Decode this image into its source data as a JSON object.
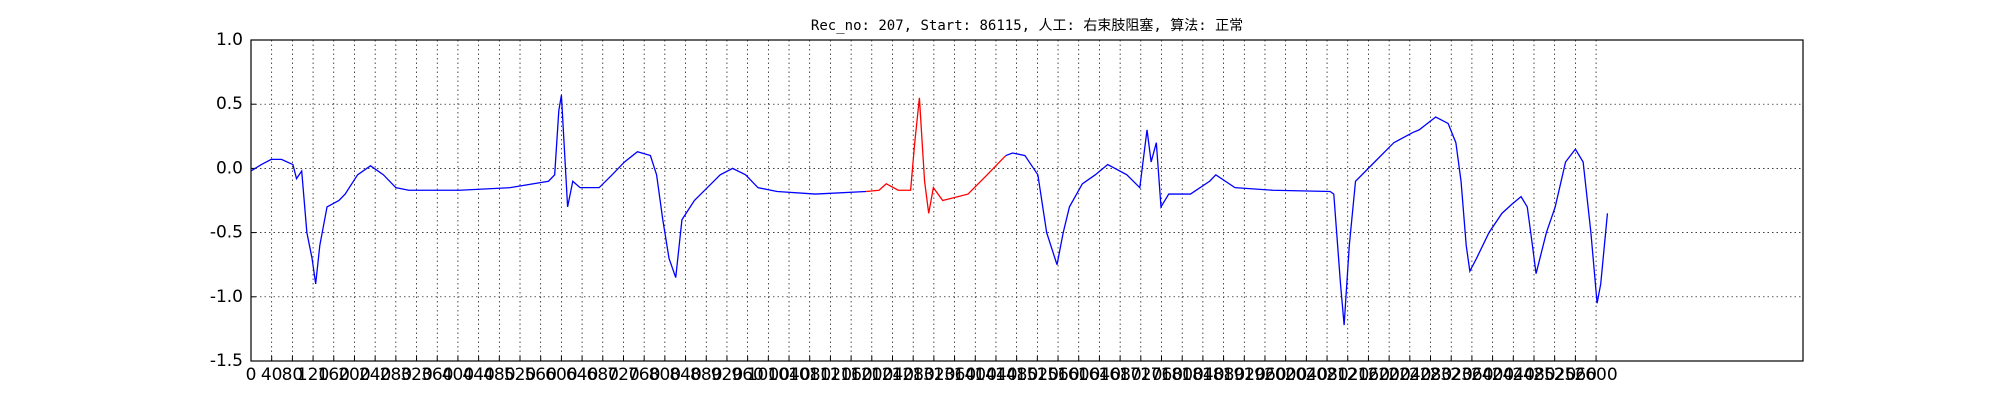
{
  "chart_data": {
    "type": "line",
    "title": "Rec_no: 207, Start: 86115, 人工: 右束肢阻塞, 算法: 正常",
    "xlim": [
      0,
      3000
    ],
    "xticks": [
      0,
      40,
      80,
      120,
      160,
      200,
      240,
      280,
      320,
      360,
      400,
      440,
      480,
      520,
      560,
      600,
      640,
      680,
      720,
      760,
      800,
      840,
      880,
      920,
      960,
      1000,
      1040,
      1080,
      1120,
      1160,
      1200,
      1240,
      1280,
      1320,
      1360,
      1400,
      1440,
      1480,
      1520,
      1560,
      1600,
      1640,
      1680,
      1720,
      1760,
      1800,
      1840,
      1880,
      1920,
      1960,
      2000,
      2040,
      2080,
      2120,
      2160,
      2200,
      2240,
      2280,
      2320,
      2360,
      2400,
      2440,
      2480,
      2520,
      2560,
      2600
    ],
    "ylim": [
      -1.5,
      1.0
    ],
    "yticks": [
      -1.5,
      {
        "value": -1,
        "label": "-1.0"
      },
      -0.5,
      {
        "value": 0,
        "label": "0.0"
      },
      0.5,
      {
        "value": 1,
        "label": "1.0"
      }
    ],
    "grid": true,
    "series": [
      {
        "color": "#0000ff",
        "x": [
          0,
          20,
          39,
          59,
          81,
          88,
          98,
          108,
          118,
          125,
          133,
          147,
          170,
          182,
          206,
          231,
          256,
          280,
          305,
          403,
          501,
          575,
          587,
          595,
          600,
          612,
          622,
          636,
          673,
          698,
          722,
          747,
          772,
          784,
          796,
          808,
          821,
          833,
          857,
          882,
          907,
          931,
          956,
          980,
          1017,
          1091,
          1189,
          1300,
          1459,
          1472,
          1496,
          1521,
          1538,
          1558,
          1570,
          1582,
          1607,
          1632,
          1656,
          1693,
          1718,
          1732,
          1740,
          1750,
          1759,
          1774,
          1816,
          1853,
          1865,
          1902,
          1975,
          2086,
          2093,
          2106,
          2113,
          2123,
          2135,
          2172,
          2209,
          2246,
          2258,
          2290,
          2314,
          2329,
          2339,
          2349,
          2356,
          2369,
          2393,
          2418,
          2437,
          2455,
          2467,
          2477,
          2484,
          2504,
          2521,
          2541,
          2560,
          2575,
          2590,
          2602,
          2609,
          2622
        ],
        "values": [
          -0.02,
          0.03,
          0.07,
          0.07,
          0.03,
          -0.08,
          -0.02,
          -0.5,
          -0.7,
          -0.9,
          -0.6,
          -0.3,
          -0.25,
          -0.2,
          -0.05,
          0.02,
          -0.05,
          -0.15,
          -0.17,
          -0.17,
          -0.15,
          -0.1,
          -0.05,
          0.45,
          0.57,
          -0.3,
          -0.1,
          -0.15,
          -0.15,
          -0.05,
          0.05,
          0.13,
          0.1,
          -0.05,
          -0.4,
          -0.7,
          -0.85,
          -0.4,
          -0.25,
          -0.15,
          -0.05,
          0.0,
          -0.05,
          -0.15,
          -0.18,
          -0.2,
          -0.18,
          null,
          0.1,
          0.12,
          0.1,
          -0.05,
          -0.5,
          -0.75,
          -0.5,
          -0.3,
          -0.12,
          -0.05,
          0.03,
          -0.05,
          -0.15,
          0.3,
          0.05,
          0.2,
          -0.3,
          -0.2,
          -0.2,
          -0.1,
          -0.05,
          -0.15,
          -0.17,
          -0.18,
          -0.2,
          -0.9,
          -1.22,
          -0.6,
          -0.1,
          0.05,
          0.2,
          0.28,
          0.3,
          0.4,
          0.35,
          0.2,
          -0.1,
          -0.6,
          -0.8,
          -0.7,
          -0.5,
          -0.35,
          -0.28,
          -0.22,
          -0.3,
          -0.6,
          -0.82,
          -0.5,
          -0.3,
          0.05,
          0.15,
          0.05,
          -0.5,
          -1.05,
          -0.9,
          -0.35
        ]
      },
      {
        "color": "#ff0000",
        "x": [
          1189,
          1214,
          1228,
          1251,
          1275,
          1283,
          1292,
          1302,
          1310,
          1319,
          1337,
          1386,
          1423,
          1447,
          1459
        ],
        "values": [
          -0.18,
          -0.17,
          -0.12,
          -0.17,
          -0.17,
          0.2,
          0.55,
          -0.1,
          -0.35,
          -0.15,
          -0.25,
          -0.2,
          -0.05,
          0.05,
          0.1
        ]
      }
    ]
  }
}
